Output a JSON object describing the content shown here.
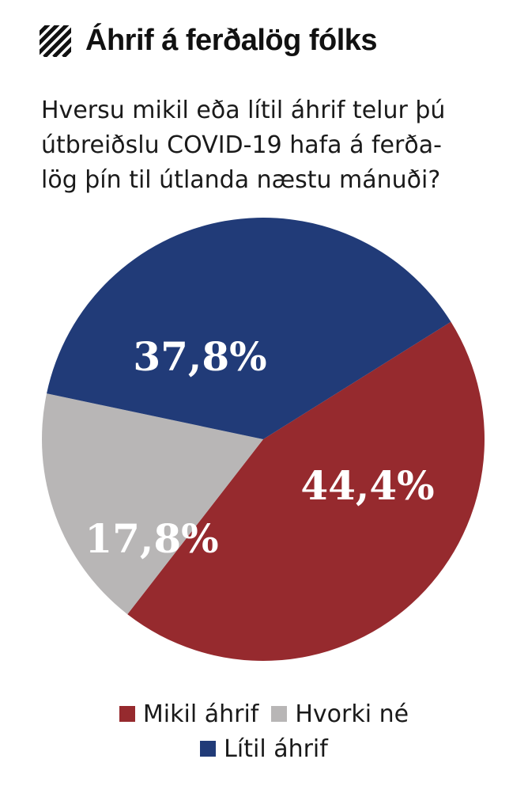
{
  "chart_data": {
    "type": "pie",
    "title": "Áhrif á ferðalög fólks",
    "subtitle_lines": [
      "Hversu mikil eða lítil áhrif telur þú",
      "útbreiðslu COVID-19 hafa á ferða-",
      "lög þín til útlanda næstu mánuði?"
    ],
    "slices": [
      {
        "name": "Mikil áhrif",
        "value": 44.4,
        "label": "44,4%",
        "color": "#962a2e"
      },
      {
        "name": "Hvorki né",
        "value": 17.8,
        "label": "17,8%",
        "color": "#b8b6b6"
      },
      {
        "name": "Lítil áhrif",
        "value": 37.8,
        "label": "37,8%",
        "color": "#213b78"
      }
    ],
    "legend_position": "bottom"
  },
  "icons": {
    "title_icon": "hatched-square-icon"
  }
}
